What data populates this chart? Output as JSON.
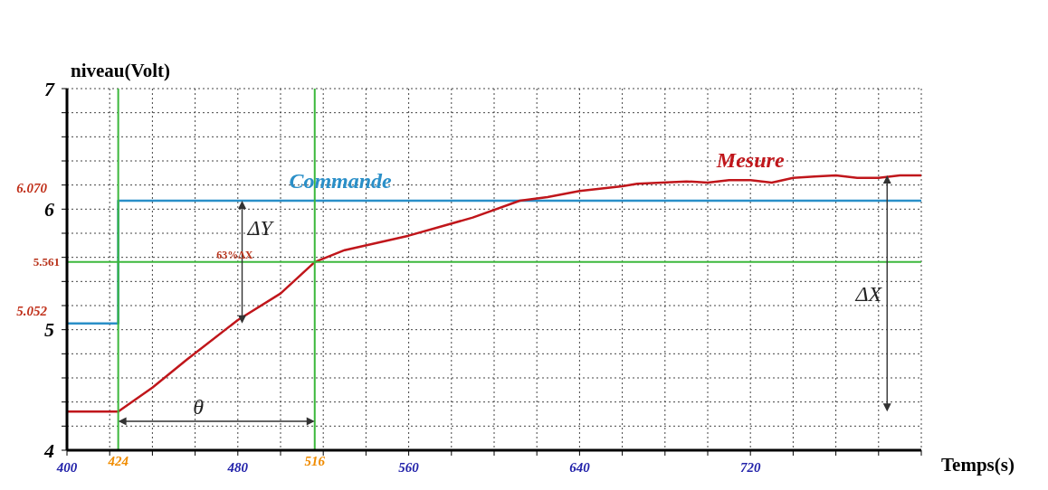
{
  "chart_data": {
    "type": "line",
    "xlabel": "Temps(s)",
    "ylabel": "niveau(Volt)",
    "xlim": [
      400,
      800
    ],
    "ylim": [
      4,
      7
    ],
    "xticks": [
      400,
      {
        "value": 420,
        "label": null
      },
      {
        "value": 440,
        "label": null
      },
      {
        "value": 460,
        "label": null
      },
      480,
      {
        "value": 500,
        "label": null
      },
      {
        "value": 520,
        "label": null
      },
      {
        "value": 540,
        "label": null
      },
      560,
      {
        "value": 580,
        "label": null
      },
      {
        "value": 600,
        "label": null
      },
      {
        "value": 620,
        "label": null
      },
      640,
      {
        "value": 660,
        "label": null
      },
      {
        "value": 680,
        "label": null
      },
      {
        "value": 700,
        "label": null
      },
      720,
      {
        "value": 740,
        "label": null
      },
      {
        "value": 760,
        "label": null
      },
      {
        "value": 780,
        "label": null
      },
      {
        "value": 800,
        "label": null
      }
    ],
    "yticks": [
      4,
      {
        "value": 4.2,
        "label": null
      },
      {
        "value": 4.4,
        "label": null
      },
      {
        "value": 4.6,
        "label": null
      },
      {
        "value": 4.8,
        "label": null
      },
      5,
      {
        "value": 5.2,
        "label": null
      },
      {
        "value": 5.4,
        "label": null
      },
      {
        "value": 5.6,
        "label": null
      },
      {
        "value": 5.8,
        "label": null
      },
      6,
      {
        "value": 6.2,
        "label": null
      },
      {
        "value": 6.4,
        "label": null
      },
      {
        "value": 6.6,
        "label": null
      },
      {
        "value": 6.8,
        "label": null
      },
      7
    ],
    "grid": true,
    "legend": false,
    "marker": "none",
    "line_style": "solid",
    "series": [
      {
        "name": "Commande",
        "color": "#2a8fc8",
        "x": [
          400,
          424,
          424,
          800
        ],
        "values": [
          5.052,
          5.052,
          6.07,
          6.07
        ]
      },
      {
        "name": "Mesure",
        "color": "#c0161b",
        "x": [
          400,
          424,
          440,
          456,
          480,
          500,
          516,
          530,
          560,
          590,
          612,
          625,
          640,
          660,
          667,
          690,
          700,
          710,
          720,
          730,
          740,
          750,
          760,
          770,
          780,
          790,
          800
        ],
        "values": [
          4.32,
          4.32,
          4.52,
          4.75,
          5.08,
          5.3,
          5.561,
          5.66,
          5.78,
          5.93,
          6.07,
          6.1,
          6.15,
          6.19,
          6.21,
          6.23,
          6.22,
          6.24,
          6.24,
          6.22,
          6.26,
          6.27,
          6.28,
          6.26,
          6.26,
          6.28,
          6.28
        ]
      }
    ],
    "ref_lines": [
      {
        "axis": "y",
        "value": 5.561,
        "label": "5.561",
        "color": "#3cb83c"
      },
      {
        "axis": "x",
        "value": 424,
        "label": "424",
        "color": "#3cb83c"
      },
      {
        "axis": "x",
        "value": 516,
        "label": "516",
        "color": "#3cb83c"
      }
    ],
    "annotations": [
      {
        "text": "ΔY",
        "x": 482,
        "y": 5.561
      },
      "ΔX",
      "θ",
      {
        "text": "63%ΔX",
        "x": 470,
        "y": 5.561
      },
      "6.070",
      "5.052"
    ]
  }
}
